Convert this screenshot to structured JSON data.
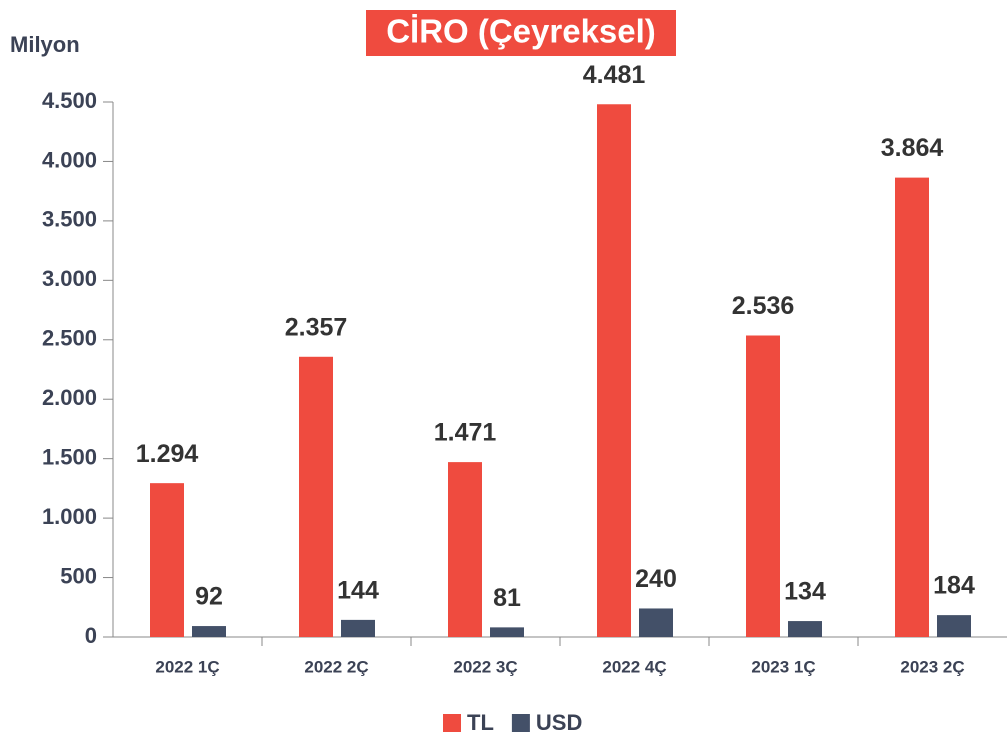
{
  "chart_data": {
    "type": "bar",
    "title": "CİRO (Çeyreksel)",
    "y_label": "Milyon",
    "categories": [
      "2022 1Ç",
      "2022 2Ç",
      "2022 3Ç",
      "2022 4Ç",
      "2023 1Ç",
      "2023 2Ç"
    ],
    "series": [
      {
        "name": "TL",
        "color": "#ef4b3f",
        "values": [
          1294,
          2357,
          1471,
          4481,
          2536,
          3864
        ],
        "value_labels": [
          "1.294",
          "2.357",
          "1.471",
          "4.481",
          "2.536",
          "3.864"
        ]
      },
      {
        "name": "USD",
        "color": "#435068",
        "values": [
          92,
          144,
          81,
          240,
          134,
          184
        ]
      }
    ],
    "ylim": [
      0,
      4500
    ],
    "yticks": [
      0,
      500,
      {
        "value": 1000,
        "label": "1.000"
      },
      {
        "value": 1500,
        "label": "1.500"
      },
      {
        "value": 2000,
        "label": "2.000"
      },
      {
        "value": 2500,
        "label": "2.500"
      },
      {
        "value": 3000,
        "label": "3.000"
      },
      {
        "value": 3500,
        "label": "3.500"
      },
      {
        "value": 4000,
        "label": "4.000"
      },
      {
        "value": 4500,
        "label": "4.500"
      }
    ],
    "legend": "bottom"
  }
}
